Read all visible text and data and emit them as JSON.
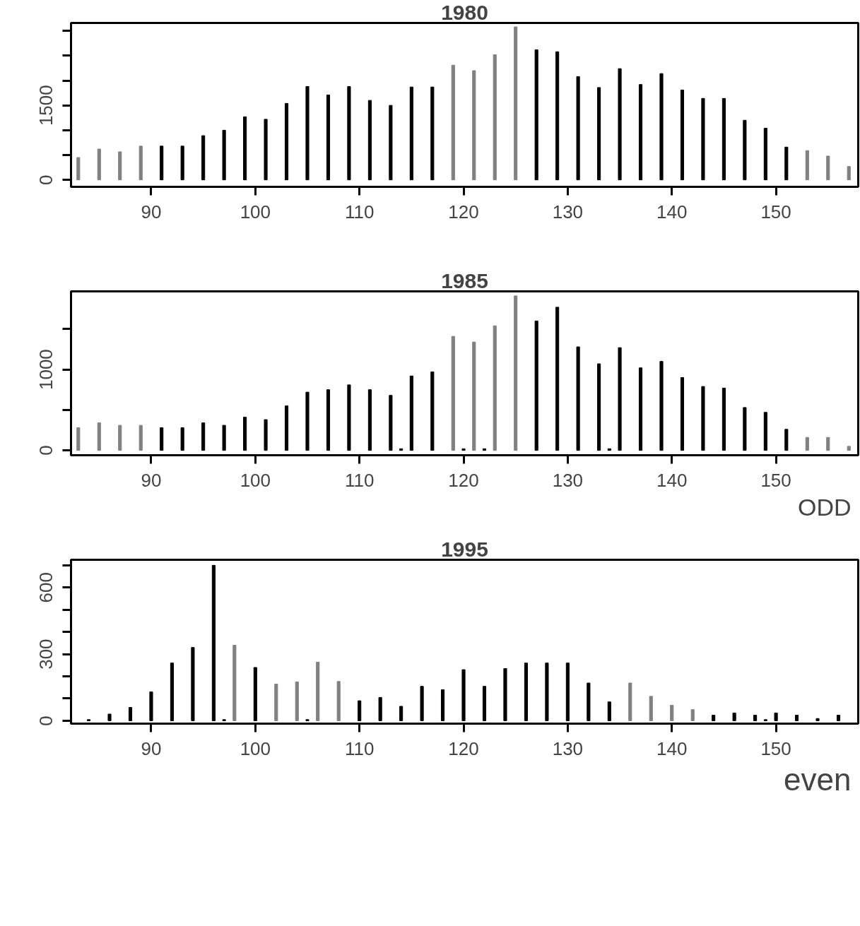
{
  "chart_data": [
    {
      "type": "bar",
      "title": "1980",
      "x": [
        83,
        85,
        87,
        89,
        91,
        93,
        95,
        97,
        99,
        101,
        103,
        105,
        107,
        109,
        111,
        113,
        115,
        117,
        119,
        121,
        123,
        125,
        127,
        129,
        131,
        133,
        135,
        137,
        139,
        141,
        143,
        145,
        147,
        149,
        151,
        153,
        155,
        157
      ],
      "values": [
        450,
        620,
        565,
        680,
        680,
        680,
        890,
        1000,
        1270,
        1220,
        1540,
        1880,
        1710,
        1880,
        1600,
        1500,
        1870,
        1870,
        2310,
        2200,
        2520,
        3080,
        2620,
        2580,
        2080,
        1860,
        2240,
        1920,
        2140,
        1810,
        1640,
        1640,
        1200,
        1040,
        660,
        590,
        480,
        270
      ],
      "colors": [
        "#808080",
        "#808080",
        "#808080",
        "#808080",
        "#000000",
        "#000000",
        "#000000",
        "#000000",
        "#000000",
        "#000000",
        "#000000",
        "#000000",
        "#000000",
        "#000000",
        "#000000",
        "#000000",
        "#000000",
        "#000000",
        "#808080",
        "#808080",
        "#808080",
        "#808080",
        "#000000",
        "#000000",
        "#000000",
        "#000000",
        "#000000",
        "#000000",
        "#000000",
        "#000000",
        "#000000",
        "#000000",
        "#000000",
        "#000000",
        "#000000",
        "#808080",
        "#808080",
        "#808080"
      ],
      "xlim": [
        82.3,
        157.9
      ],
      "xticks": [
        90,
        100,
        110,
        120,
        130,
        140,
        150
      ],
      "ylim": [
        -140,
        3160
      ],
      "yticks": [
        0,
        {
          "value": 500,
          "label": null
        },
        {
          "value": 1000,
          "label": null
        },
        1500,
        {
          "value": 2000,
          "label": null
        },
        {
          "value": 2500,
          "label": null
        },
        {
          "value": 3000,
          "label": null
        }
      ]
    },
    {
      "type": "bar",
      "title": "1985",
      "x": [
        83,
        85,
        87,
        89,
        91,
        93,
        95,
        97,
        99,
        101,
        103,
        105,
        107,
        109,
        111,
        113,
        114,
        115,
        117,
        119,
        120,
        121,
        122,
        123,
        125,
        127,
        129,
        131,
        133,
        134,
        135,
        137,
        139,
        141,
        143,
        145,
        147,
        149,
        151,
        153,
        155,
        157
      ],
      "values": [
        280,
        340,
        310,
        310,
        280,
        280,
        340,
        310,
        410,
        380,
        550,
        720,
        750,
        810,
        750,
        680,
        20,
        920,
        970,
        1410,
        20,
        1340,
        20,
        1540,
        1910,
        1600,
        1770,
        1280,
        1070,
        20,
        1270,
        1020,
        1100,
        900,
        790,
        770,
        530,
        470,
        260,
        160,
        160,
        50
      ],
      "colors": [
        "#808080",
        "#808080",
        "#808080",
        "#808080",
        "#000000",
        "#000000",
        "#000000",
        "#000000",
        "#000000",
        "#000000",
        "#000000",
        "#000000",
        "#000000",
        "#000000",
        "#000000",
        "#000000",
        "#000000",
        "#000000",
        "#000000",
        "#808080",
        "#000000",
        "#808080",
        "#000000",
        "#808080",
        "#808080",
        "#000000",
        "#000000",
        "#000000",
        "#000000",
        "#000000",
        "#000000",
        "#000000",
        "#000000",
        "#000000",
        "#000000",
        "#000000",
        "#000000",
        "#000000",
        "#000000",
        "#808080",
        "#808080",
        "#808080"
      ],
      "xlim": [
        82.3,
        157.9
      ],
      "xticks": [
        90,
        100,
        110,
        120,
        130,
        140,
        150
      ],
      "ylim": [
        -60,
        1966
      ],
      "yticks": [
        0,
        {
          "value": 500,
          "label": null
        },
        1000,
        {
          "value": 1500,
          "label": null
        }
      ],
      "annotations": [
        "ODD"
      ]
    },
    {
      "type": "bar",
      "title": "1995",
      "x": [
        84,
        86,
        88,
        90,
        92,
        94,
        96,
        97,
        98,
        100,
        102,
        104,
        105,
        106,
        108,
        110,
        112,
        114,
        116,
        118,
        120,
        122,
        124,
        126,
        128,
        130,
        132,
        134,
        136,
        138,
        140,
        142,
        144,
        146,
        148,
        149,
        150,
        152,
        154,
        156
      ],
      "values": [
        5,
        30,
        60,
        130,
        260,
        330,
        700,
        5,
        340,
        240,
        165,
        175,
        5,
        264,
        177,
        90,
        105,
        65,
        155,
        140,
        230,
        155,
        235,
        260,
        260,
        260,
        170,
        85,
        170,
        110,
        70,
        50,
        25,
        35,
        25,
        5,
        35,
        25,
        10,
        25
      ],
      "colors": [
        "#000000",
        "#000000",
        "#000000",
        "#000000",
        "#000000",
        "#000000",
        "#000000",
        "#000000",
        "#808080",
        "#000000",
        "#808080",
        "#808080",
        "#000000",
        "#808080",
        "#808080",
        "#000000",
        "#000000",
        "#000000",
        "#000000",
        "#000000",
        "#000000",
        "#000000",
        "#000000",
        "#000000",
        "#000000",
        "#000000",
        "#000000",
        "#000000",
        "#808080",
        "#808080",
        "#808080",
        "#808080",
        "#000000",
        "#000000",
        "#000000",
        "#000000",
        "#000000",
        "#000000",
        "#000000",
        "#000000"
      ],
      "xlim": [
        82.3,
        157.9
      ],
      "xticks": [
        90,
        100,
        110,
        120,
        130,
        140,
        150
      ],
      "ylim": [
        -13,
        725
      ],
      "yticks": [
        0,
        {
          "value": 100,
          "label": null
        },
        {
          "value": 200,
          "label": null
        },
        300,
        {
          "value": 400,
          "label": null
        },
        {
          "value": 500,
          "label": null
        },
        600,
        {
          "value": 700,
          "label": null
        }
      ],
      "annotations": [
        "even"
      ]
    }
  ]
}
